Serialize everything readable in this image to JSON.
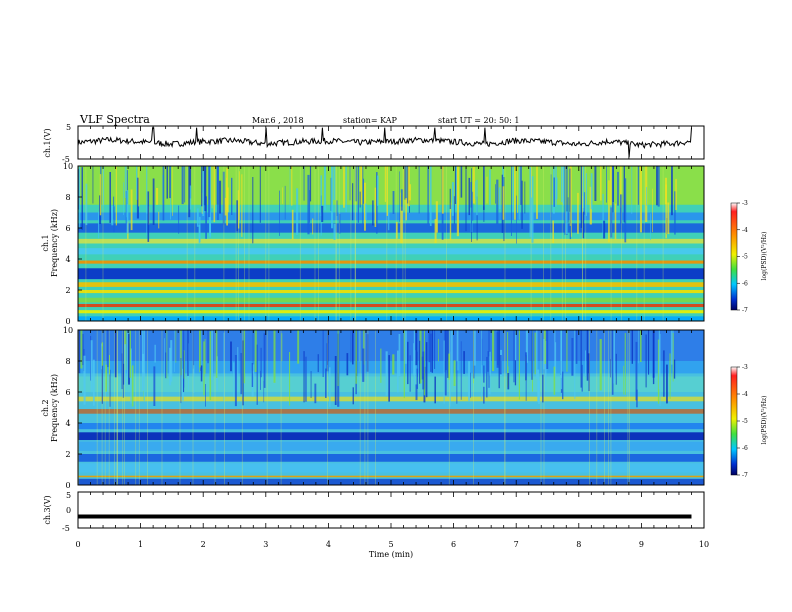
{
  "header": {
    "title": "VLF Spectra",
    "date": "Mar.6 , 2018",
    "station": "station= KAP",
    "start": "start UT = 20: 50: 1"
  },
  "colors": {
    "spectro_base": "#3fd0b8",
    "line": "#000000"
  },
  "colorbar": {
    "label": "log(PSD)(V²/Hz)",
    "ticks": [
      "-3",
      "-4",
      "-5",
      "-6",
      "-7"
    ],
    "tick_values": [
      -3,
      -4,
      -5,
      -6,
      -7
    ],
    "range": [
      -7,
      -3
    ]
  },
  "chart_data": [
    {
      "type": "line",
      "name": "ch1-waveform",
      "ylabel": "ch.1(V)",
      "ylim": [
        -5,
        5
      ],
      "y_ticks": [
        "5",
        "-5"
      ],
      "xlim": [
        0,
        10
      ],
      "trend_x": [
        0,
        0.5,
        1,
        1.5,
        2,
        2.5,
        3,
        3.5,
        4,
        4.5,
        5,
        5.5,
        6,
        6.5,
        7,
        7.5,
        8,
        8.5,
        9,
        9.5,
        9.8
      ],
      "trend_y": [
        0,
        0.8,
        0.2,
        -0.5,
        0.3,
        0.6,
        -0.4,
        0.2,
        0.5,
        0,
        0.3,
        0.8,
        0.2,
        -0.5,
        0.6,
        0.2,
        -0.6,
        0.4,
        -0.8,
        -0.3,
        0.3
      ],
      "spike_x": [
        1.2,
        1.9,
        3.0,
        3.9,
        4.9,
        5.7,
        6.5,
        8.8,
        9.8
      ]
    },
    {
      "type": "heatmap",
      "name": "ch1-spectrogram",
      "ylabel": "ch.1\nFrequency (kHz)",
      "ylabel_line1": "ch.1",
      "ylabel_line2": "Frequency (kHz)",
      "xlim": [
        0,
        10
      ],
      "ylim": [
        0,
        10
      ],
      "y_ticks": [
        "0",
        "2",
        "4",
        "6",
        "8",
        "10"
      ],
      "bands": [
        {
          "f0": 0.0,
          "f1": 0.3,
          "color": "#00a8ff"
        },
        {
          "f0": 0.5,
          "f1": 0.7,
          "color": "#e8f000"
        },
        {
          "f0": 0.9,
          "f1": 1.1,
          "color": "#e04010"
        },
        {
          "f0": 1.2,
          "f1": 1.5,
          "color": "#7ad84a"
        },
        {
          "f0": 1.8,
          "f1": 2.0,
          "color": "#f0e000"
        },
        {
          "f0": 2.2,
          "f1": 2.5,
          "color": "#f0c000"
        },
        {
          "f0": 2.7,
          "f1": 3.4,
          "color": "#0830c8"
        },
        {
          "f0": 3.7,
          "f1": 3.9,
          "color": "#f09000"
        },
        {
          "f0": 4.3,
          "f1": 4.7,
          "color": "#48c8f0"
        },
        {
          "f0": 5.0,
          "f1": 5.3,
          "color": "#c8e050"
        },
        {
          "f0": 5.7,
          "f1": 6.3,
          "color": "#1860e0"
        },
        {
          "f0": 6.5,
          "f1": 7.0,
          "color": "#2890f0"
        },
        {
          "f0": 7.5,
          "f1": 10.0,
          "color": "#90e040"
        }
      ]
    },
    {
      "type": "heatmap",
      "name": "ch2-spectrogram",
      "ylabel": "ch.2\nFrequency (kHz)",
      "ylabel_line1": "ch.2",
      "ylabel_line2": "Frequency (kHz)",
      "xlim": [
        0,
        10
      ],
      "ylim": [
        0,
        10
      ],
      "y_ticks": [
        "0",
        "2",
        "4",
        "6",
        "8",
        "10"
      ],
      "bands": [
        {
          "f0": 0.0,
          "f1": 0.4,
          "color": "#1850d0"
        },
        {
          "f0": 0.5,
          "f1": 0.6,
          "color": "#e8a000"
        },
        {
          "f0": 0.8,
          "f1": 1.4,
          "color": "#48c0f0"
        },
        {
          "f0": 1.5,
          "f1": 2.0,
          "color": "#1860e0"
        },
        {
          "f0": 2.2,
          "f1": 2.8,
          "color": "#38a8f0"
        },
        {
          "f0": 2.9,
          "f1": 3.4,
          "color": "#0828b8"
        },
        {
          "f0": 3.6,
          "f1": 4.0,
          "color": "#2080f0"
        },
        {
          "f0": 4.6,
          "f1": 4.9,
          "color": "#b07040"
        },
        {
          "f0": 5.4,
          "f1": 5.7,
          "color": "#c8d848"
        },
        {
          "f0": 6.0,
          "f1": 7.0,
          "color": "#58d0d0"
        },
        {
          "f0": 7.2,
          "f1": 8.0,
          "color": "#30a0f0"
        },
        {
          "f0": 8.0,
          "f1": 10.0,
          "color": "#2c78e8"
        }
      ]
    },
    {
      "type": "line",
      "name": "ch3-waveform",
      "ylabel": "ch.3(V)",
      "ylim": [
        -5,
        5
      ],
      "y_ticks": [
        "5",
        "0",
        "-5"
      ],
      "xlim": [
        0,
        10
      ],
      "x": [
        0,
        9.8
      ],
      "y": [
        -1.8,
        -1.8
      ],
      "xlabel": "Time (min)",
      "x_ticks": [
        "0",
        "1",
        "2",
        "3",
        "4",
        "5",
        "6",
        "7",
        "8",
        "9",
        "10"
      ]
    }
  ]
}
